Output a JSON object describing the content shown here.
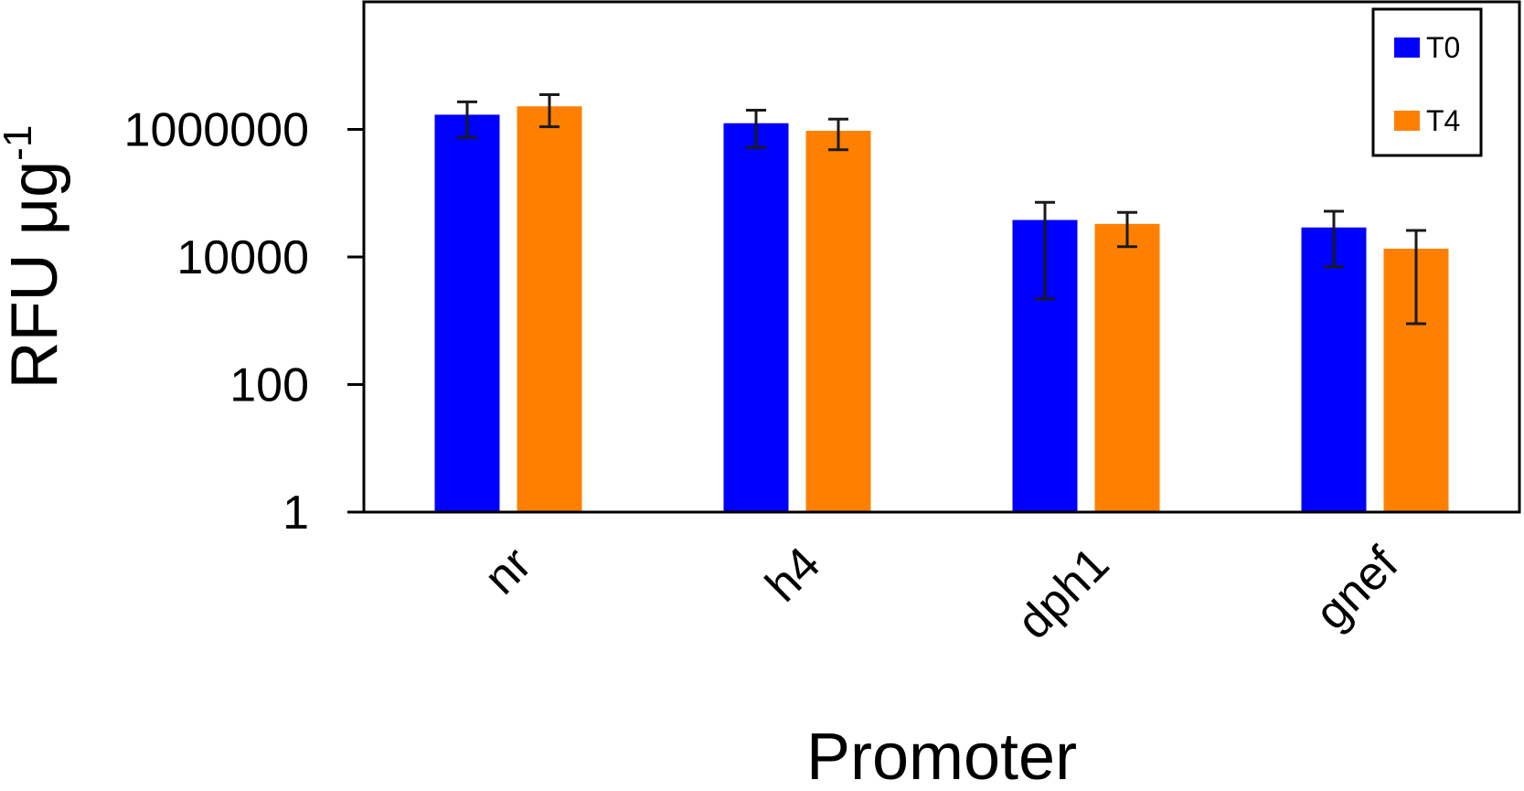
{
  "chart_data": {
    "type": "bar",
    "scale": "log",
    "categories": [
      "nr",
      "h4",
      "dph1",
      "gnef"
    ],
    "series": [
      {
        "name": "T0",
        "color": "#0000FF",
        "values": [
          1700000,
          1250000,
          38000,
          29000
        ],
        "error_low": [
          750000,
          520000,
          2200,
          7000
        ],
        "error_high": [
          2700000,
          2000000,
          72000,
          52000
        ]
      },
      {
        "name": "T4",
        "color": "#FF8000",
        "values": [
          2300000,
          950000,
          33000,
          13500
        ],
        "error_low": [
          1100000,
          480000,
          14500,
          900
        ],
        "error_high": [
          3500000,
          1450000,
          50000,
          26000
        ]
      }
    ],
    "y_ticks": [
      "1",
      "100",
      "10000",
      "1000000"
    ],
    "ylim": [
      1,
      100000000
    ],
    "xlabel": "Promoter",
    "ylabel": "RFU μg",
    "ylabel_superscript": "-1",
    "legend_placement": "top-right",
    "grid": false
  }
}
